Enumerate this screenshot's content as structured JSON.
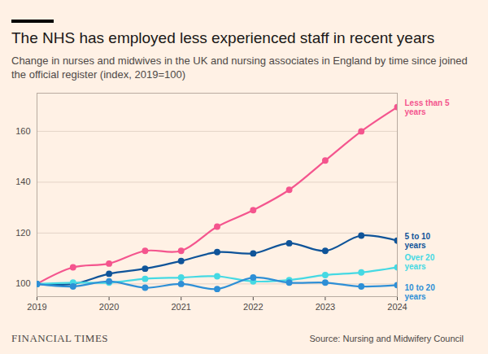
{
  "chart_data": {
    "type": "line",
    "title": "The NHS has employed less experienced staff in recent years",
    "subtitle": "Change in nurses and midwives in the UK and nursing associates in England by time since joined the official register (index, 2019=100)",
    "source": "Source: Nursing and Midwifery Council",
    "logo": "FINANCIAL TIMES",
    "x": [
      2019,
      2019.5,
      2020,
      2020.5,
      2021,
      2021.5,
      2022,
      2022.5,
      2023,
      2023.5,
      2024
    ],
    "xlim": [
      2019,
      2024
    ],
    "xticks": [
      2019,
      2020,
      2021,
      2022,
      2023,
      2024
    ],
    "ylim": [
      95,
      175
    ],
    "yticks": [
      100,
      120,
      140,
      160
    ],
    "grid": true,
    "marker": "circle",
    "series": [
      {
        "name": "Less than 5 years",
        "color": "#f4558e",
        "values": [
          100,
          106.5,
          108,
          113,
          113,
          122.5,
          129,
          137,
          148.5,
          160,
          169.5
        ]
      },
      {
        "name": "5 to 10 years",
        "color": "#0f5499",
        "values": [
          100,
          100,
          104,
          106,
          109,
          112.5,
          112,
          116,
          113,
          119,
          117
        ]
      },
      {
        "name": "Over 20 years",
        "color": "#45d9e3",
        "values": [
          100,
          100.5,
          100.5,
          102,
          102.5,
          103,
          101,
          101.5,
          103.5,
          104.5,
          106.5
        ]
      },
      {
        "name": "10 to 20 years",
        "color": "#2e8fd6",
        "values": [
          100,
          99,
          101,
          98.5,
          100,
          98,
          102.5,
          100.5,
          100.5,
          99,
          99.5
        ]
      }
    ]
  }
}
